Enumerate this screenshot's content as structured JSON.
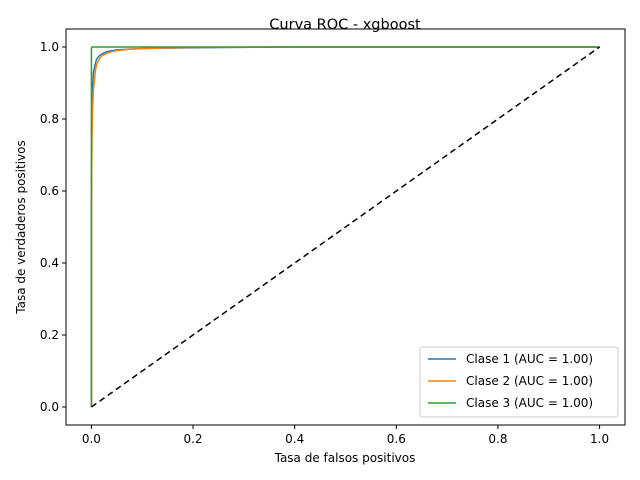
{
  "chart_data": {
    "type": "line",
    "title": "Curva ROC - xgboost",
    "xlabel": "Tasa de falsos positivos",
    "ylabel": "Tasa de verdaderos positivos",
    "xlim": [
      -0.05,
      1.05
    ],
    "ylim": [
      -0.05,
      1.05
    ],
    "xticks": [
      0.0,
      0.2,
      0.4,
      0.6,
      0.8,
      1.0
    ],
    "yticks": [
      0.0,
      0.2,
      0.4,
      0.6,
      0.8,
      1.0
    ],
    "xtick_labels": [
      "0.0",
      "0.2",
      "0.4",
      "0.6",
      "0.8",
      "1.0"
    ],
    "ytick_labels": [
      "0.0",
      "0.2",
      "0.4",
      "0.6",
      "0.8",
      "1.0"
    ],
    "grid": false,
    "legend_position": "lower-right",
    "series": [
      {
        "name": "Clase 1 (AUC = 1.00)",
        "color": "#1f77b4",
        "x": [
          0,
          0,
          0.001,
          0.002,
          0.004,
          0.007,
          0.01,
          0.015,
          0.02,
          0.03,
          0.05,
          0.1,
          0.2,
          0.4,
          1.0
        ],
        "y": [
          0,
          0.6,
          0.8,
          0.88,
          0.93,
          0.95,
          0.965,
          0.975,
          0.98,
          0.987,
          0.992,
          0.996,
          0.998,
          1.0,
          1.0
        ]
      },
      {
        "name": "Clase 2 (AUC = 1.00)",
        "color": "#ff7f0e",
        "x": [
          0,
          0,
          0.001,
          0.002,
          0.004,
          0.006,
          0.008,
          0.01,
          0.015,
          0.02,
          0.03,
          0.04,
          0.05,
          0.07,
          0.1,
          0.2,
          0.4,
          1.0
        ],
        "y": [
          0,
          0.55,
          0.72,
          0.82,
          0.88,
          0.91,
          0.935,
          0.95,
          0.965,
          0.975,
          0.982,
          0.987,
          0.99,
          0.993,
          0.996,
          0.999,
          1.0,
          1.0
        ]
      },
      {
        "name": "Clase 3 (AUC = 1.00)",
        "color": "#2ca02c",
        "x": [
          0,
          0,
          0.001,
          1.0
        ],
        "y": [
          0,
          0.995,
          1.0,
          1.0
        ]
      }
    ],
    "reference_line": {
      "color": "#000000",
      "style": "dashed",
      "x": [
        0,
        1
      ],
      "y": [
        0,
        1
      ]
    }
  }
}
